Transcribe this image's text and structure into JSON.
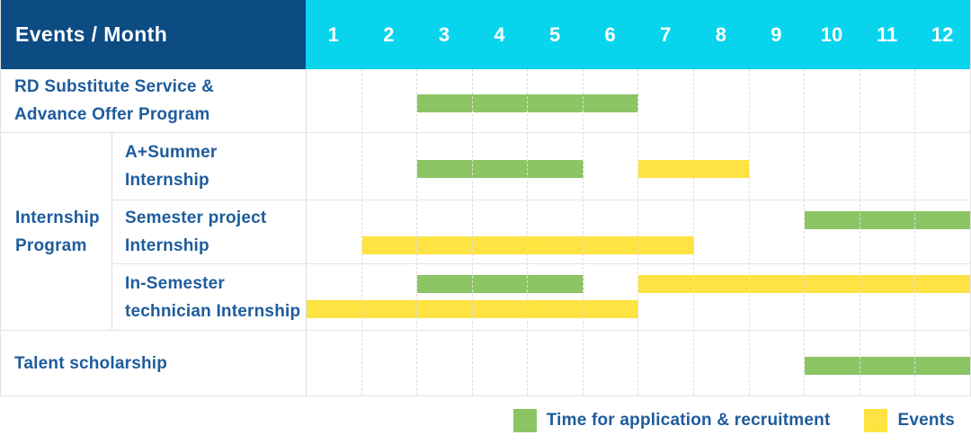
{
  "header": {
    "corner_label": "Events / Month",
    "months": [
      "1",
      "2",
      "3",
      "4",
      "5",
      "6",
      "7",
      "8",
      "9",
      "10",
      "11",
      "12"
    ]
  },
  "colors": {
    "header_navy": "#0d4b83",
    "header_cyan": "#08d4ee",
    "application_green": "#8cc564",
    "events_yellow": "#fee342",
    "label_blue": "#1e5c9c",
    "grid_line": "#e4e4e4"
  },
  "internship_group": {
    "label": "Internship Program",
    "lines": [
      "Internship",
      "Program"
    ]
  },
  "chart_data": {
    "type": "gantt",
    "x_unit": "month",
    "x_domain": [
      1,
      12
    ],
    "x_ticks": [
      "1",
      "2",
      "3",
      "4",
      "5",
      "6",
      "7",
      "8",
      "9",
      "10",
      "11",
      "12"
    ],
    "grid": "on",
    "series": {
      "application": {
        "name": "Time for application & recruitment",
        "color": "#8cc564"
      },
      "events": {
        "name": "Events",
        "color": "#fee342"
      }
    },
    "rows": [
      {
        "group": "",
        "label": "RD Substitute Service & Advance Offer Program",
        "label_lines": [
          "RD Substitute Service &",
          "Advance Offer Program"
        ],
        "bars": [
          {
            "series": "application",
            "start_month": 3,
            "end_month": 6,
            "lane": 0
          }
        ]
      },
      {
        "group": "Internship Program",
        "label": "A+Summer Internship",
        "label_lines": [
          "A+Summer",
          "Internship"
        ],
        "bars": [
          {
            "series": "application",
            "start_month": 3,
            "end_month": 5,
            "lane": 0
          },
          {
            "series": "events",
            "start_month": 7,
            "end_month": 8,
            "lane": 0
          }
        ]
      },
      {
        "group": "Internship Program",
        "label": "Semester project Internship",
        "label_lines": [
          "Semester project",
          "Internship"
        ],
        "bars": [
          {
            "series": "application",
            "start_month": 10,
            "end_month": 12,
            "lane": 0
          },
          {
            "series": "events",
            "start_month": 2,
            "end_month": 7,
            "lane": 1
          }
        ]
      },
      {
        "group": "Internship Program",
        "label": "In-Semester technician Internship",
        "label_lines": [
          "In-Semester",
          "technician Internship"
        ],
        "bars": [
          {
            "series": "application",
            "start_month": 3,
            "end_month": 5,
            "lane": 0
          },
          {
            "series": "events",
            "start_month": 7,
            "end_month": 12,
            "lane": 0
          },
          {
            "series": "events",
            "start_month": 1,
            "end_month": 6,
            "lane": 1
          }
        ]
      },
      {
        "group": "",
        "label": "Talent scholarship",
        "label_lines": [
          "Talent scholarship"
        ],
        "bars": [
          {
            "series": "application",
            "start_month": 10,
            "end_month": 12,
            "lane": 0
          }
        ]
      }
    ]
  },
  "legend": {
    "items": [
      {
        "label": "Time for application & recruitment",
        "series": "application",
        "color": "#8cc564"
      },
      {
        "label": "Events",
        "series": "events",
        "color": "#fee342"
      }
    ]
  }
}
